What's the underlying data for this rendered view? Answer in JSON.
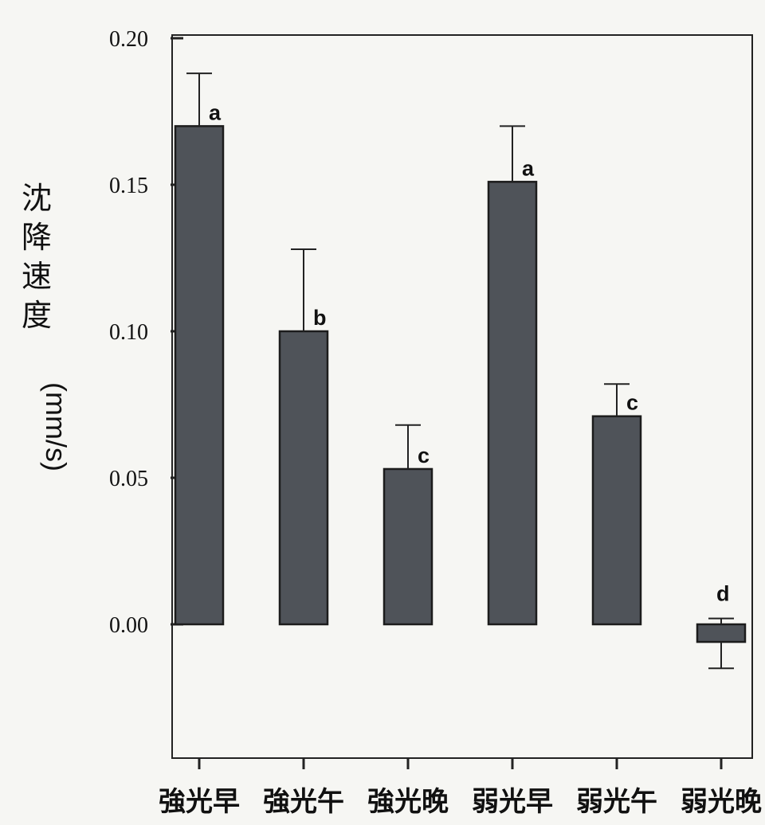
{
  "chart_data": {
    "type": "bar",
    "categories": [
      "強光早",
      "強光午",
      "強光晚",
      "弱光早",
      "弱光午",
      "弱光晚"
    ],
    "values": [
      0.17,
      0.1,
      0.053,
      0.151,
      0.071,
      -0.006
    ],
    "error_upper": [
      0.188,
      0.128,
      0.068,
      0.17,
      0.082,
      0.002
    ],
    "error_lower": [
      null,
      null,
      null,
      null,
      null,
      -0.015
    ],
    "significance_labels": [
      "a",
      "b",
      "c",
      "a",
      "c",
      "d"
    ],
    "title": "",
    "xlabel": "",
    "ylabel": "沈降速度 (mm/s)",
    "ylabel_text": "沈降速度",
    "ylabel_unit": "(mm/s)",
    "ylim": [
      -0.04,
      0.21
    ],
    "yticks": [
      "0.00",
      "0.05",
      "0.10",
      "0.15",
      "0.20"
    ],
    "ytick_values": [
      0.0,
      0.05,
      0.1,
      0.15,
      0.2
    ],
    "grid": false,
    "legend": "none",
    "bar_color": "#4f5359",
    "edge_color": "#1c1c1c"
  }
}
